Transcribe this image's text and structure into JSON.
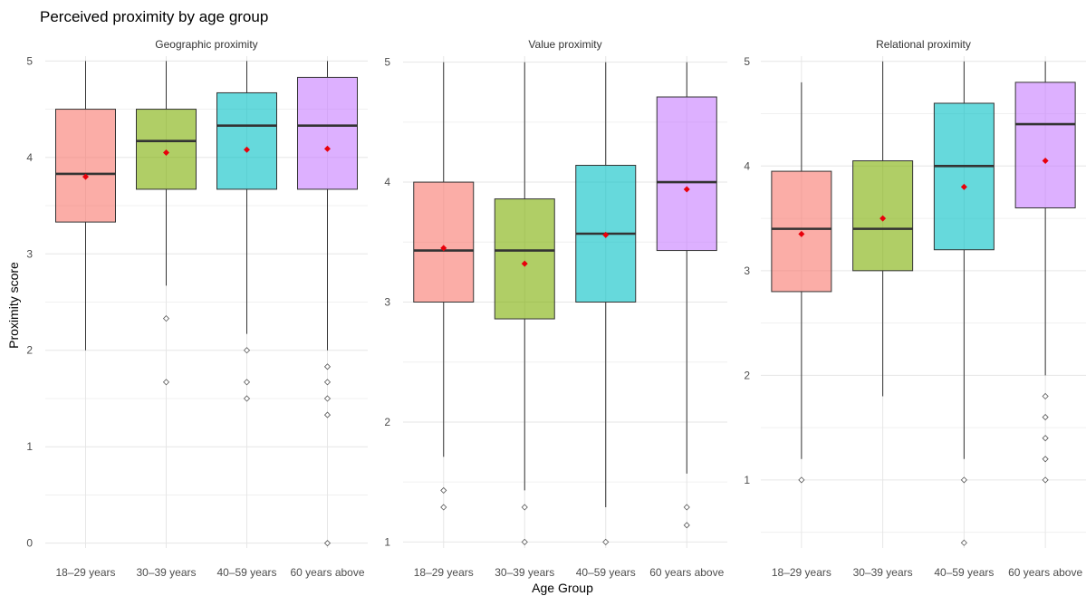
{
  "chart_data": {
    "type": "boxplot",
    "title": "Perceived proximity by age group",
    "xlabel": "Age Group",
    "ylabel": "Proximity score",
    "categories": [
      "18–29 years",
      "30–39 years",
      "40–59 years",
      "60 years above"
    ],
    "colors": [
      "#F8766D",
      "#7CAE00",
      "#00BFC4",
      "#C77CFF"
    ],
    "mean_color": "#E8000B",
    "grid": true,
    "facets": [
      {
        "name": "Geographic proximity",
        "ylim": [
          -0.05,
          5.05
        ],
        "yticks": [
          0,
          1,
          2,
          3,
          4,
          5
        ],
        "boxes": [
          {
            "min": 2.0,
            "q1": 3.33,
            "median": 3.83,
            "q3": 4.5,
            "max": 5.0,
            "mean": 3.8,
            "outliers": []
          },
          {
            "min": 2.67,
            "q1": 3.67,
            "median": 4.17,
            "q3": 4.5,
            "max": 5.0,
            "mean": 4.05,
            "outliers": [
              2.33,
              1.67
            ]
          },
          {
            "min": 2.17,
            "q1": 3.67,
            "median": 4.33,
            "q3": 4.67,
            "max": 5.0,
            "mean": 4.08,
            "outliers": [
              2.0,
              1.67,
              1.5
            ]
          },
          {
            "min": 2.0,
            "q1": 3.67,
            "median": 4.33,
            "q3": 4.83,
            "max": 5.0,
            "mean": 4.09,
            "outliers": [
              1.83,
              1.67,
              1.5,
              1.33,
              0.0
            ]
          }
        ]
      },
      {
        "name": "Value proximity",
        "ylim": [
          0.95,
          5.05
        ],
        "yticks": [
          1,
          2,
          3,
          4,
          5
        ],
        "boxes": [
          {
            "min": 1.71,
            "q1": 3.0,
            "median": 3.43,
            "q3": 4.0,
            "max": 5.0,
            "mean": 3.45,
            "outliers": [
              1.43,
              1.29
            ]
          },
          {
            "min": 1.43,
            "q1": 2.86,
            "median": 3.43,
            "q3": 3.86,
            "max": 5.0,
            "mean": 3.32,
            "outliers": [
              1.29,
              1.0
            ]
          },
          {
            "min": 1.29,
            "q1": 3.0,
            "median": 3.57,
            "q3": 4.14,
            "max": 5.0,
            "mean": 3.56,
            "outliers": [
              1.0
            ]
          },
          {
            "min": 1.57,
            "q1": 3.43,
            "median": 4.0,
            "q3": 4.71,
            "max": 5.0,
            "mean": 3.94,
            "outliers": [
              1.29,
              1.14
            ]
          }
        ]
      },
      {
        "name": "Relational proximity",
        "ylim": [
          0.35,
          5.05
        ],
        "yticks": [
          1,
          2,
          3,
          4,
          5
        ],
        "boxes": [
          {
            "min": 1.2,
            "q1": 2.8,
            "median": 3.4,
            "q3": 3.95,
            "max": 4.8,
            "mean": 3.35,
            "outliers": [
              1.0
            ]
          },
          {
            "min": 1.8,
            "q1": 3.0,
            "median": 3.4,
            "q3": 4.05,
            "max": 5.0,
            "mean": 3.5,
            "outliers": []
          },
          {
            "min": 1.2,
            "q1": 3.2,
            "median": 4.0,
            "q3": 4.6,
            "max": 5.0,
            "mean": 3.8,
            "outliers": [
              1.0,
              0.4
            ]
          },
          {
            "min": 2.0,
            "q1": 3.6,
            "median": 4.4,
            "q3": 4.8,
            "max": 5.0,
            "mean": 4.05,
            "outliers": [
              1.8,
              1.6,
              1.4,
              1.2,
              1.0
            ]
          }
        ]
      }
    ]
  }
}
